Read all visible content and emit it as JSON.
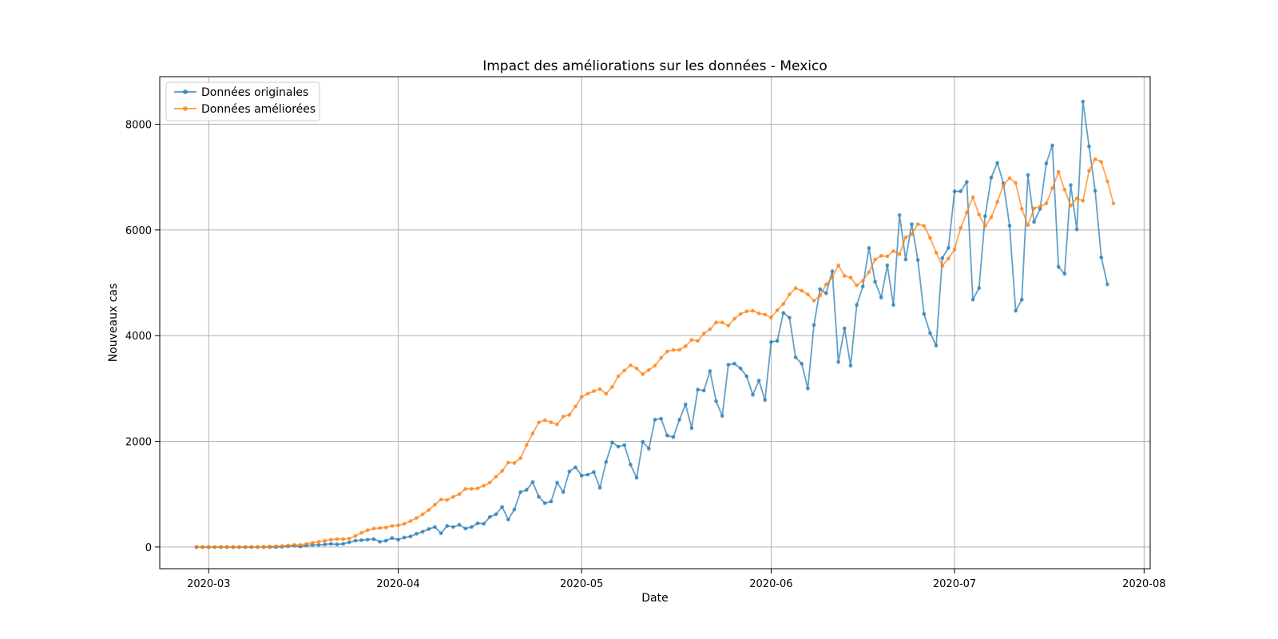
{
  "chart_data": {
    "type": "line",
    "title": "Impact des améliorations sur les données - Mexico",
    "xlabel": "Date",
    "ylabel": "Nouveaux cas",
    "x_start": "2020-02-28",
    "x_step_days": 1,
    "xlim": [
      "2020-02-22",
      "2020-08-02"
    ],
    "ylim": [
      -410,
      8900
    ],
    "x_ticks": [
      {
        "date": "2020-03-01",
        "label": "2020-03"
      },
      {
        "date": "2020-04-01",
        "label": "2020-04"
      },
      {
        "date": "2020-05-01",
        "label": "2020-05"
      },
      {
        "date": "2020-06-01",
        "label": "2020-06"
      },
      {
        "date": "2020-07-01",
        "label": "2020-07"
      },
      {
        "date": "2020-08-01",
        "label": "2020-08"
      }
    ],
    "y_ticks": [
      {
        "value": 0,
        "label": "0"
      },
      {
        "value": 2000,
        "label": "2000"
      },
      {
        "value": 4000,
        "label": "4000"
      },
      {
        "value": 6000,
        "label": "6000"
      },
      {
        "value": 8000,
        "label": "8000"
      }
    ],
    "grid": true,
    "legend_position": "top-left",
    "series": [
      {
        "name": "Données originales",
        "color": "#1f77b4",
        "values": [
          0,
          0,
          0,
          0,
          0,
          0,
          0,
          0,
          0,
          0,
          0,
          0,
          0,
          0,
          5,
          15,
          25,
          10,
          30,
          40,
          40,
          50,
          60,
          50,
          60,
          90,
          120,
          130,
          140,
          150,
          100,
          120,
          170,
          140,
          180,
          200,
          250,
          290,
          340,
          380,
          260,
          400,
          380,
          420,
          350,
          380,
          450,
          440,
          570,
          620,
          760,
          520,
          710,
          1040,
          1080,
          1230,
          950,
          830,
          860,
          1220,
          1040,
          1430,
          1510,
          1350,
          1370,
          1420,
          1120,
          1610,
          1980,
          1900,
          1930,
          1560,
          1310,
          1990,
          1860,
          2410,
          2430,
          2110,
          2080,
          2410,
          2700,
          2250,
          2980,
          2960,
          3330,
          2760,
          2480,
          3450,
          3470,
          3380,
          3230,
          2880,
          3150,
          2780,
          3880,
          3900,
          4430,
          4340,
          3590,
          3470,
          3000,
          4200,
          4880,
          4800,
          5220,
          3500,
          4140,
          3430,
          4580,
          4930,
          5660,
          5020,
          4720,
          5330,
          4580,
          6280,
          5440,
          6110,
          5430,
          4410,
          4050,
          3810,
          5470,
          5660,
          6730,
          6730,
          6910,
          4680,
          4900,
          6260,
          6990,
          7270,
          6880,
          6080,
          4470,
          4680,
          7040,
          6150,
          6400,
          7260,
          7600,
          5300,
          5170,
          6850,
          6010,
          8430,
          7580,
          6740,
          5480,
          4970
        ]
      },
      {
        "name": "Données améliorées",
        "color": "#ff7f0e",
        "values": [
          0,
          0,
          0,
          0,
          0,
          0,
          0,
          0,
          0,
          0,
          0,
          5,
          10,
          15,
          20,
          30,
          40,
          40,
          60,
          80,
          100,
          120,
          140,
          150,
          150,
          160,
          210,
          270,
          320,
          350,
          360,
          370,
          400,
          410,
          440,
          490,
          550,
          620,
          700,
          800,
          900,
          890,
          950,
          1000,
          1100,
          1100,
          1110,
          1160,
          1220,
          1330,
          1440,
          1600,
          1590,
          1680,
          1930,
          2150,
          2360,
          2400,
          2360,
          2320,
          2470,
          2500,
          2660,
          2840,
          2900,
          2950,
          2990,
          2900,
          3030,
          3230,
          3340,
          3440,
          3380,
          3270,
          3350,
          3430,
          3580,
          3700,
          3730,
          3730,
          3800,
          3920,
          3900,
          4040,
          4120,
          4250,
          4250,
          4190,
          4320,
          4410,
          4460,
          4470,
          4420,
          4400,
          4340,
          4480,
          4600,
          4780,
          4900,
          4850,
          4780,
          4660,
          4760,
          4970,
          5100,
          5330,
          5130,
          5100,
          4950,
          5040,
          5200,
          5440,
          5510,
          5500,
          5600,
          5540,
          5860,
          5920,
          6110,
          6080,
          5850,
          5570,
          5320,
          5460,
          5630,
          6040,
          6330,
          6620,
          6290,
          6070,
          6240,
          6530,
          6850,
          6980,
          6890,
          6400,
          6090,
          6410,
          6440,
          6500,
          6790,
          7100,
          6760,
          6460,
          6600,
          6550,
          7120,
          7340,
          7290,
          6920,
          6500
        ]
      }
    ]
  }
}
